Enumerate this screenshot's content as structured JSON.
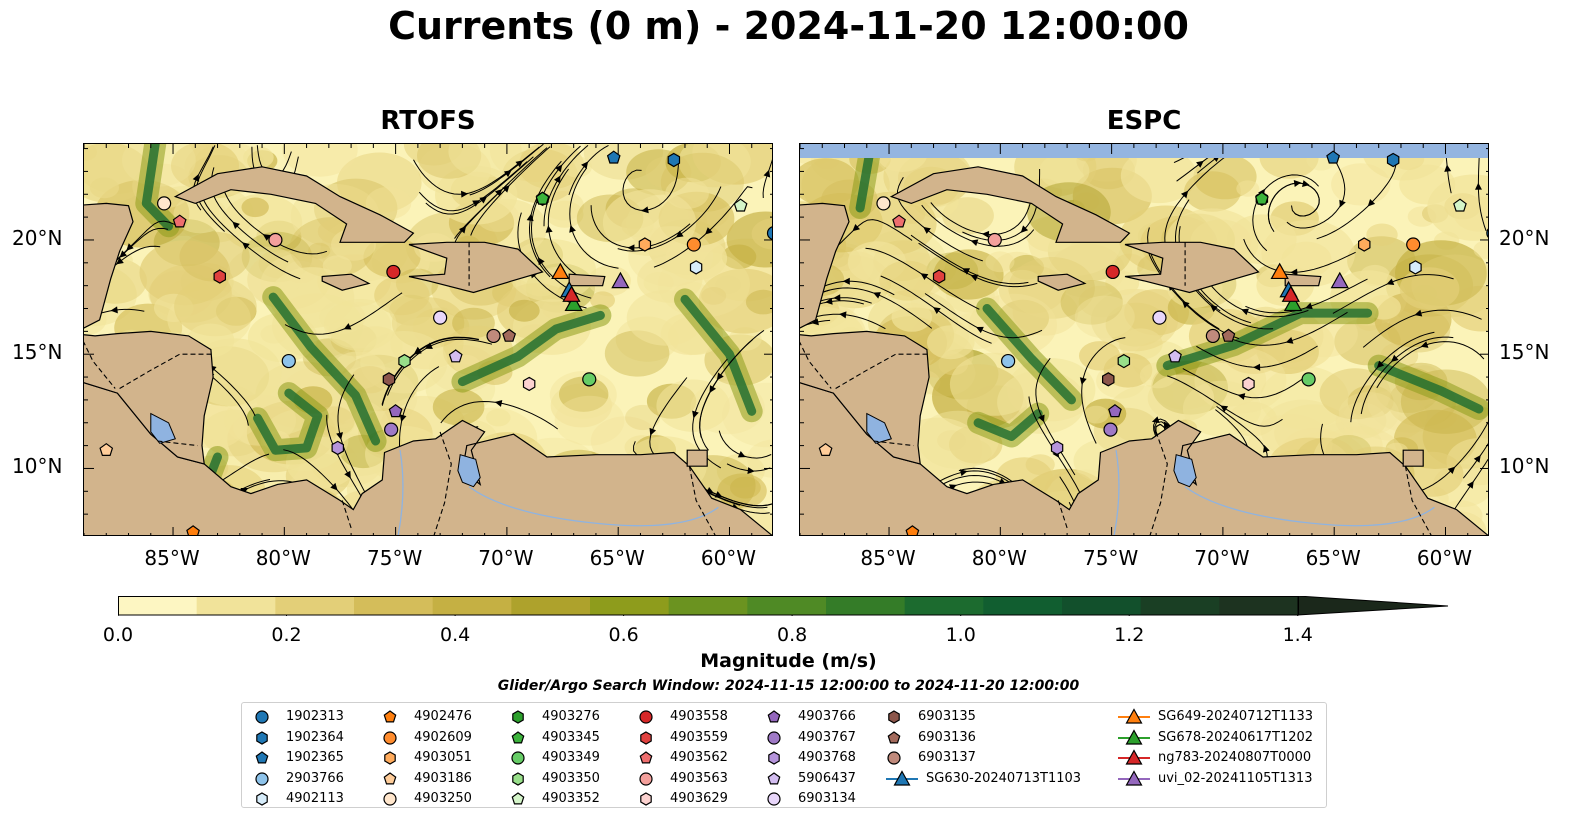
{
  "title": "Currents (0 m) - 2024-11-20 12:00:00",
  "panels": [
    {
      "title": "RTOFS",
      "variant": 0
    },
    {
      "title": "ESPC",
      "variant": 1
    }
  ],
  "map": {
    "extent": {
      "lon_min": -89,
      "lon_max": -58,
      "lat_min": 7,
      "lat_max": 24.2
    },
    "lon_ticks": [
      {
        "value": -85,
        "label": "85°W"
      },
      {
        "value": -80,
        "label": "80°W"
      },
      {
        "value": -75,
        "label": "75°W"
      },
      {
        "value": -70,
        "label": "70°W"
      },
      {
        "value": -65,
        "label": "65°W"
      },
      {
        "value": -60,
        "label": "60°W"
      }
    ],
    "lat_ticks": [
      {
        "value": 20,
        "label": "20°N"
      },
      {
        "value": 15,
        "label": "15°N"
      },
      {
        "value": 10,
        "label": "10°N"
      }
    ],
    "land_color": "#d2b48c",
    "ocean_light": "#fbf3b8",
    "lake_color": "#8fb3e0"
  },
  "colorbar": {
    "title": "Magnitude (m/s)",
    "min": 0.0,
    "max": 1.5,
    "extend": "max",
    "ticks": [
      {
        "value": 0.0,
        "label": "0.0"
      },
      {
        "value": 0.2,
        "label": "0.2"
      },
      {
        "value": 0.4,
        "label": "0.4"
      },
      {
        "value": 0.6,
        "label": "0.6"
      },
      {
        "value": 0.8,
        "label": "0.8"
      },
      {
        "value": 1.0,
        "label": "1.0"
      },
      {
        "value": 1.2,
        "label": "1.2"
      },
      {
        "value": 1.4,
        "label": "1.4"
      }
    ],
    "colors": [
      "#fdf6c2",
      "#f1e39a",
      "#e3cf78",
      "#d4bd5a",
      "#c5b043",
      "#aea22c",
      "#8e9c1c",
      "#6b9320",
      "#4f8a25",
      "#347c28",
      "#1c6b2f",
      "#115e30",
      "#12502c",
      "#1a3f24",
      "#1d3320",
      "#1b281b"
    ]
  },
  "search_window": "Glider/Argo Search Window: 2024-11-15 12:00:00 to 2024-11-20 12:00:00",
  "legend": [
    {
      "label": "1902313",
      "marker": "circle",
      "color": "#1f77b4"
    },
    {
      "label": "1902364",
      "marker": "hexagon",
      "color": "#1f77b4"
    },
    {
      "label": "1902365",
      "marker": "pentagon",
      "color": "#1f77b4"
    },
    {
      "label": "2903766",
      "marker": "circle",
      "color": "#8ec3ea"
    },
    {
      "label": "4902113",
      "marker": "hexagon",
      "color": "#d6ecfa"
    },
    {
      "label": "4902476",
      "marker": "pentagon",
      "color": "#ff7f0e"
    },
    {
      "label": "4902609",
      "marker": "circle",
      "color": "#ff8c2e"
    },
    {
      "label": "4903051",
      "marker": "hexagon",
      "color": "#ffab5c"
    },
    {
      "label": "4903186",
      "marker": "pentagon",
      "color": "#ffcd9a"
    },
    {
      "label": "4903250",
      "marker": "circle",
      "color": "#ffe6cc"
    },
    {
      "label": "4903276",
      "marker": "hexagon",
      "color": "#2ca02c"
    },
    {
      "label": "4903345",
      "marker": "pentagon",
      "color": "#3cb33c"
    },
    {
      "label": "4903349",
      "marker": "circle",
      "color": "#66cc66"
    },
    {
      "label": "4903350",
      "marker": "hexagon",
      "color": "#98df8a"
    },
    {
      "label": "4903352",
      "marker": "pentagon",
      "color": "#d4f5c9"
    },
    {
      "label": "4903558",
      "marker": "circle",
      "color": "#d62728"
    },
    {
      "label": "4903559",
      "marker": "hexagon",
      "color": "#e0413f"
    },
    {
      "label": "4903562",
      "marker": "pentagon",
      "color": "#ee6e6e"
    },
    {
      "label": "4903563",
      "marker": "circle",
      "color": "#f4a09c"
    },
    {
      "label": "4903629",
      "marker": "hexagon",
      "color": "#fcd2d0"
    },
    {
      "label": "4903766",
      "marker": "pentagon",
      "color": "#9467bd"
    },
    {
      "label": "4903767",
      "marker": "circle",
      "color": "#9f79c6"
    },
    {
      "label": "4903768",
      "marker": "hexagon",
      "color": "#b594db"
    },
    {
      "label": "5906437",
      "marker": "pentagon",
      "color": "#d3bdf0"
    },
    {
      "label": "6903134",
      "marker": "circle",
      "color": "#e8d6fa"
    },
    {
      "label": "6903135",
      "marker": "hexagon",
      "color": "#8c564b"
    },
    {
      "label": "6903136",
      "marker": "pentagon",
      "color": "#a36a5c"
    },
    {
      "label": "6903137",
      "marker": "circle",
      "color": "#c08a7c"
    },
    {
      "label": "SG630-20240713T1103",
      "marker": "triangle-line",
      "color": "#1f77b4"
    },
    {
      "label": "SG649-20240712T1133",
      "marker": "triangle-line",
      "color": "#ff7f0e"
    },
    {
      "label": "SG678-20240617T1202",
      "marker": "triangle-line",
      "color": "#2ca02c"
    },
    {
      "label": "ng783-20240807T0000",
      "marker": "triangle-line",
      "color": "#d62728"
    },
    {
      "label": "uvi_02-20241105T1313",
      "marker": "triangle-line",
      "color": "#9467bd"
    }
  ],
  "observations": [
    {
      "id": "1902313",
      "lon": -58.0,
      "lat": 20.3
    },
    {
      "id": "1902364",
      "lon": -62.5,
      "lat": 23.5
    },
    {
      "id": "1902365",
      "lon": -65.2,
      "lat": 23.6
    },
    {
      "id": "2903766",
      "lon": -79.8,
      "lat": 14.7
    },
    {
      "id": "4902113",
      "lon": -61.5,
      "lat": 18.8
    },
    {
      "id": "4902476",
      "lon": -84.1,
      "lat": 7.2
    },
    {
      "id": "4902609",
      "lon": -61.6,
      "lat": 19.8
    },
    {
      "id": "4903051",
      "lon": -63.8,
      "lat": 19.8
    },
    {
      "id": "4903186",
      "lon": -88.0,
      "lat": 10.8
    },
    {
      "id": "4903250",
      "lon": -85.4,
      "lat": 21.6
    },
    {
      "id": "4903276",
      "lon": -68.4,
      "lat": 21.8
    },
    {
      "id": "4903345",
      "lon": -68.4,
      "lat": 21.8
    },
    {
      "id": "4903349",
      "lon": -66.3,
      "lat": 13.9
    },
    {
      "id": "4903350",
      "lon": -74.6,
      "lat": 14.7
    },
    {
      "id": "4903352",
      "lon": -59.5,
      "lat": 21.5
    },
    {
      "id": "4903558",
      "lon": -75.1,
      "lat": 18.6
    },
    {
      "id": "4903559",
      "lon": -82.9,
      "lat": 18.4
    },
    {
      "id": "4903562",
      "lon": -84.7,
      "lat": 20.8
    },
    {
      "id": "4903563",
      "lon": -80.4,
      "lat": 20.0
    },
    {
      "id": "4903629",
      "lon": -69.0,
      "lat": 13.7
    },
    {
      "id": "4903766",
      "lon": -75.0,
      "lat": 12.5
    },
    {
      "id": "4903767",
      "lon": -75.2,
      "lat": 11.7
    },
    {
      "id": "4903768",
      "lon": -77.6,
      "lat": 10.9
    },
    {
      "id": "5906437",
      "lon": -72.3,
      "lat": 14.9
    },
    {
      "id": "6903134",
      "lon": -73.0,
      "lat": 16.6
    },
    {
      "id": "6903135",
      "lon": -75.3,
      "lat": 13.9
    },
    {
      "id": "6903136",
      "lon": -69.9,
      "lat": 15.8
    },
    {
      "id": "6903137",
      "lon": -70.6,
      "lat": 15.8
    },
    {
      "id": "SG630-20240713T1103",
      "lon": -67.2,
      "lat": 17.8
    },
    {
      "id": "SG649-20240712T1133",
      "lon": -67.6,
      "lat": 18.6
    },
    {
      "id": "SG678-20240617T1202",
      "lon": -67.0,
      "lat": 17.2
    },
    {
      "id": "ng783-20240807T0000",
      "lon": -67.1,
      "lat": 17.6
    },
    {
      "id": "uvi_02-20241105T1313",
      "lon": -64.9,
      "lat": 18.2
    }
  ]
}
